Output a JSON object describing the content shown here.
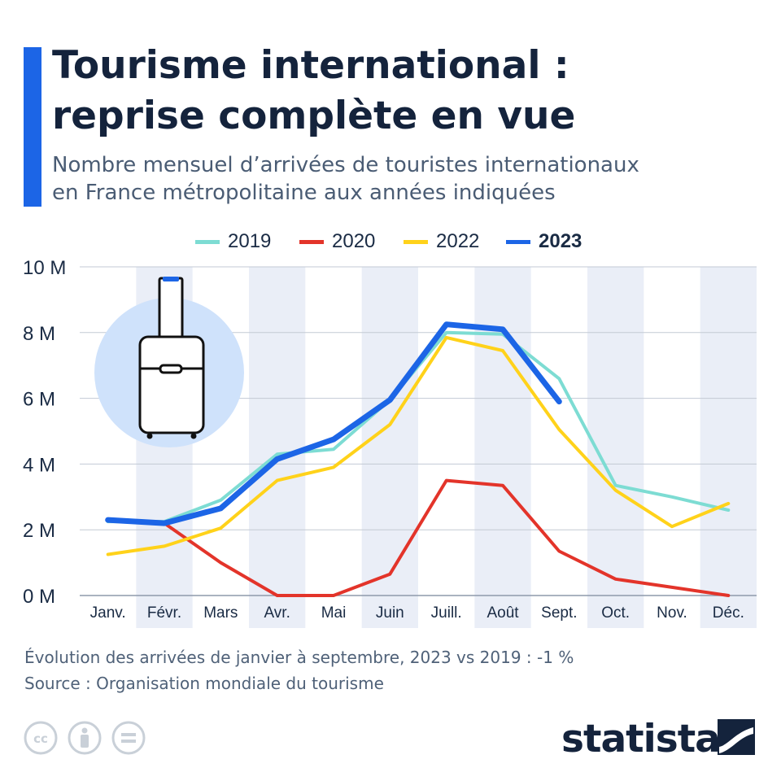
{
  "header": {
    "title_line1": "Tourisme international :",
    "title_line2": "reprise complète en vue",
    "subtitle_line1": "Nombre mensuel d’arrivées de touristes internationaux",
    "subtitle_line2": "en France métropolitaine aux années indiquées"
  },
  "legend": [
    {
      "label": "2019",
      "color": "#7ddcd3",
      "bold": false
    },
    {
      "label": "2020",
      "color": "#e3342a",
      "bold": false
    },
    {
      "label": "2022",
      "color": "#ffd21a",
      "bold": false
    },
    {
      "label": "2023",
      "color": "#1c65e6",
      "bold": true
    }
  ],
  "chart_data": {
    "type": "line",
    "title": "Tourisme international : reprise complète en vue",
    "subtitle": "Nombre mensuel d’arrivées de touristes internationaux en France métropolitaine aux années indiquées",
    "xlabel": "",
    "ylabel": "",
    "categories": [
      "Janv.",
      "Févr.",
      "Mars",
      "Avr.",
      "Mai",
      "Juin",
      "Juill.",
      "Août",
      "Sept.",
      "Oct.",
      "Nov.",
      "Déc."
    ],
    "y_ticks": [
      "0 M",
      "2 M",
      "4 M",
      "6 M",
      "8 M",
      "10 M"
    ],
    "ylim": [
      0,
      10
    ],
    "grid": true,
    "legend_position": "top",
    "series": [
      {
        "name": "2019",
        "color": "#7ddcd3",
        "width": 4,
        "values": [
          2.25,
          2.25,
          2.9,
          4.3,
          4.45,
          5.95,
          8.0,
          7.95,
          6.6,
          3.35,
          3.0,
          2.6
        ]
      },
      {
        "name": "2020",
        "color": "#e3342a",
        "width": 4,
        "values": [
          2.3,
          2.2,
          1.0,
          0.0,
          0.0,
          0.65,
          3.5,
          3.35,
          1.35,
          0.5,
          0.25,
          0.0
        ]
      },
      {
        "name": "2022",
        "color": "#ffd21a",
        "width": 4,
        "values": [
          1.25,
          1.5,
          2.05,
          3.5,
          3.9,
          5.2,
          7.85,
          7.45,
          5.05,
          3.2,
          2.1,
          2.8
        ]
      },
      {
        "name": "2023",
        "color": "#1c65e6",
        "width": 7,
        "values": [
          2.3,
          2.2,
          2.65,
          4.15,
          4.75,
          5.95,
          8.25,
          8.1,
          5.9,
          null,
          null,
          null
        ]
      }
    ]
  },
  "footer": {
    "note": "Évolution des arrivées de janvier à septembre, 2023 vs 2019 : -1 %",
    "source": "Source : Organisation mondiale du tourisme",
    "brand": "statista"
  },
  "icons": [
    "suitcase-icon",
    "cc-icon",
    "attribution-icon",
    "no-derivatives-icon",
    "statista-logo-icon"
  ]
}
